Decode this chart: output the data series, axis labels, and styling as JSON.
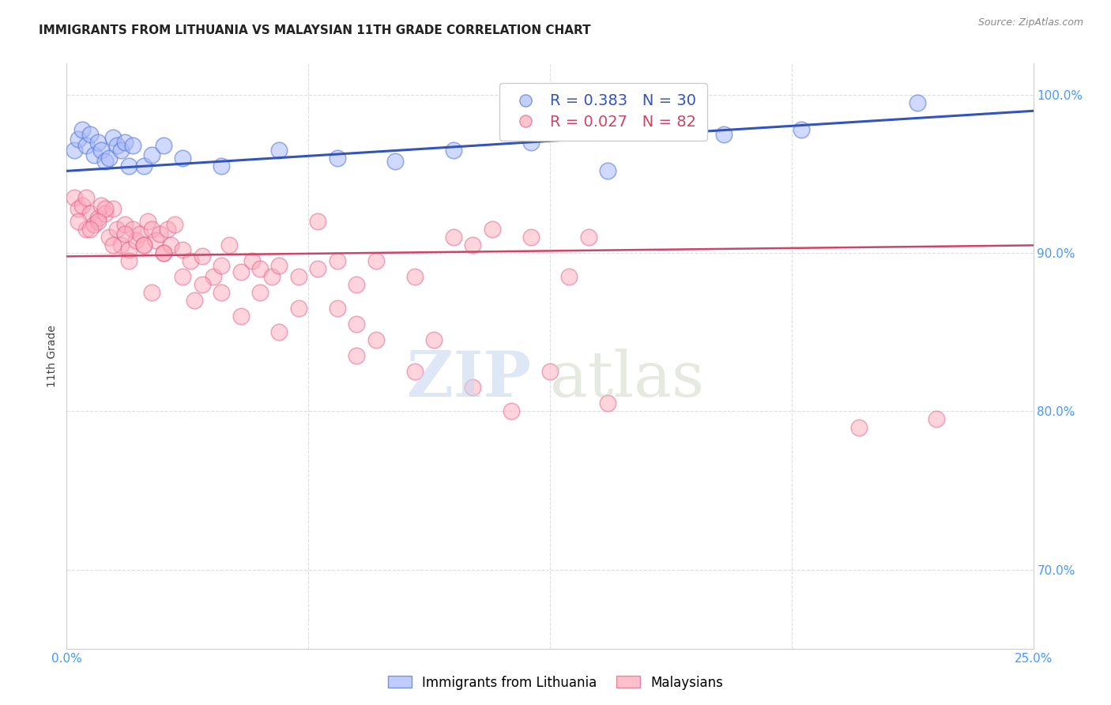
{
  "title": "IMMIGRANTS FROM LITHUANIA VS MALAYSIAN 11TH GRADE CORRELATION CHART",
  "source": "Source: ZipAtlas.com",
  "ylabel": "11th Grade",
  "legend_blue_label": "Immigrants from Lithuania",
  "legend_pink_label": "Malaysians",
  "legend_blue_r": "0.383",
  "legend_blue_n": "30",
  "legend_pink_r": "0.027",
  "legend_pink_n": "82",
  "blue_scatter_x": [
    0.2,
    0.3,
    0.4,
    0.5,
    0.6,
    0.7,
    0.8,
    0.9,
    1.0,
    1.1,
    1.2,
    1.3,
    1.4,
    1.5,
    1.6,
    1.7,
    2.0,
    2.2,
    2.5,
    3.0,
    4.0,
    5.5,
    7.0,
    8.5,
    10.0,
    12.0,
    14.0,
    17.0,
    19.0,
    22.0
  ],
  "blue_scatter_y": [
    96.5,
    97.2,
    97.8,
    96.8,
    97.5,
    96.2,
    97.0,
    96.5,
    95.8,
    96.0,
    97.3,
    96.8,
    96.5,
    97.0,
    95.5,
    96.8,
    95.5,
    96.2,
    96.8,
    96.0,
    95.5,
    96.5,
    96.0,
    95.8,
    96.5,
    97.0,
    95.2,
    97.5,
    97.8,
    99.5
  ],
  "pink_scatter_x": [
    0.2,
    0.3,
    0.4,
    0.5,
    0.6,
    0.7,
    0.8,
    0.9,
    1.0,
    1.1,
    1.2,
    1.3,
    1.4,
    1.5,
    1.6,
    1.7,
    1.8,
    1.9,
    2.0,
    2.1,
    2.2,
    2.3,
    2.4,
    2.5,
    2.6,
    2.7,
    2.8,
    3.0,
    3.2,
    3.5,
    3.8,
    4.0,
    4.2,
    4.5,
    4.8,
    5.0,
    5.3,
    5.5,
    6.0,
    6.5,
    7.0,
    7.5,
    8.0,
    9.0,
    10.0,
    11.0,
    12.0,
    13.0,
    1.0,
    1.5,
    2.0,
    2.5,
    3.0,
    3.5,
    4.0,
    5.0,
    6.0,
    7.0,
    8.0,
    9.5,
    11.5,
    0.5,
    0.8,
    1.2,
    1.6,
    2.2,
    3.3,
    4.5,
    5.5,
    7.5,
    9.0,
    10.5,
    12.5,
    14.0,
    20.5,
    22.5,
    0.3,
    0.6,
    6.5,
    10.5,
    7.5,
    13.5
  ],
  "pink_scatter_y": [
    93.5,
    92.8,
    93.0,
    91.5,
    92.5,
    91.8,
    92.2,
    93.0,
    92.5,
    91.0,
    92.8,
    91.5,
    90.5,
    91.8,
    90.2,
    91.5,
    90.8,
    91.2,
    90.5,
    92.0,
    91.5,
    90.8,
    91.2,
    90.0,
    91.5,
    90.5,
    91.8,
    90.2,
    89.5,
    89.8,
    88.5,
    89.2,
    90.5,
    88.8,
    89.5,
    89.0,
    88.5,
    89.2,
    88.5,
    89.0,
    89.5,
    88.0,
    89.5,
    88.5,
    91.0,
    91.5,
    91.0,
    88.5,
    92.8,
    91.2,
    90.5,
    90.0,
    88.5,
    88.0,
    87.5,
    87.5,
    86.5,
    86.5,
    84.5,
    84.5,
    80.0,
    93.5,
    92.0,
    90.5,
    89.5,
    87.5,
    87.0,
    86.0,
    85.0,
    83.5,
    82.5,
    81.5,
    82.5,
    80.5,
    79.0,
    79.5,
    92.0,
    91.5,
    92.0,
    90.5,
    85.5,
    91.0
  ],
  "blue_line_x": [
    0,
    25
  ],
  "blue_line_y": [
    95.2,
    99.0
  ],
  "pink_line_x": [
    0,
    25
  ],
  "pink_line_y": [
    89.8,
    90.5
  ],
  "xlim": [
    0,
    25
  ],
  "ylim": [
    65,
    102
  ],
  "yticks": [
    70,
    80,
    90,
    100
  ],
  "ytick_labels": [
    "70.0%",
    "80.0%",
    "90.0%",
    "100.0%"
  ],
  "grid_color": "#dddddd",
  "blue_color": "#aabbff",
  "pink_color": "#ffaabb",
  "blue_edge_color": "#5577cc",
  "pink_edge_color": "#dd6688",
  "blue_line_color": "#3355bb",
  "pink_line_color": "#cc4466",
  "title_fontsize": 11,
  "source_fontsize": 9,
  "tick_color": "#4499ff",
  "ylabel_color": "#444444"
}
